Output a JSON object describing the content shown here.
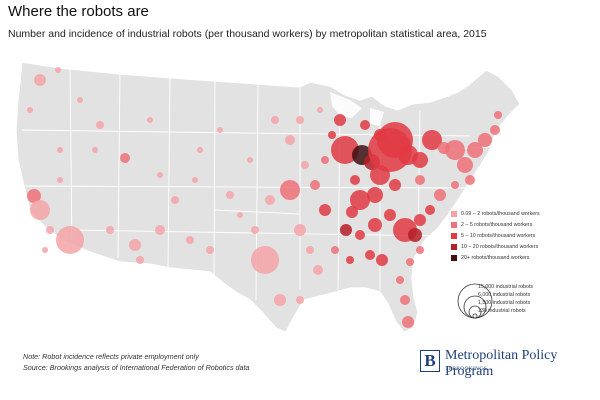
{
  "header": {
    "title": "Where the robots are",
    "subtitle": "Number and incidence of industrial robots (per thousand workers) by metropolitan statistical area, 2015"
  },
  "legend": {
    "color_classes": [
      {
        "label": "0.09 – 2 robots/thousand workers",
        "color": "#f4a3a8"
      },
      {
        "label": "2 – 5 robots/thousand workers",
        "color": "#ee7078"
      },
      {
        "label": "5 – 10 robots/thousand workers",
        "color": "#e03a43"
      },
      {
        "label": "10 – 20 robots/thousand workers",
        "color": "#b51f25"
      },
      {
        "label": "20+ robots/thousand workers",
        "color": "#3d1012"
      }
    ],
    "size_classes": [
      "15,000 industrial robots",
      "6,000 industrial robots",
      "1,500 industrial robots",
      "130 industrial robots"
    ]
  },
  "notes": {
    "line1": "Note: Robot incidence reflects private employment only",
    "line2": "Source: Brookings analysis of International Federation of Robotics data"
  },
  "branding": {
    "logo_letter": "B",
    "program": "Metropolitan Policy Program",
    "org": "at BROOKINGS"
  }
}
